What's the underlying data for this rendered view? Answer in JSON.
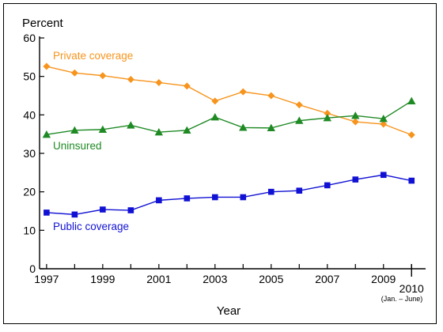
{
  "chart_data": {
    "type": "line",
    "ylabel": "Percent",
    "xlabel": "Year",
    "ylim": [
      0,
      60
    ],
    "yticks": [
      0,
      10,
      20,
      30,
      40,
      50,
      60
    ],
    "x": [
      1997,
      1998,
      1999,
      2000,
      2001,
      2002,
      2003,
      2004,
      2005,
      2006,
      2007,
      2008,
      2009,
      2010
    ],
    "xtick_labels": [
      {
        "x": 1997,
        "label": "1997"
      },
      {
        "x": 1999,
        "label": "1999"
      },
      {
        "x": 2001,
        "label": "2001"
      },
      {
        "x": 2003,
        "label": "2003"
      },
      {
        "x": 2005,
        "label": "2005"
      },
      {
        "x": 2007,
        "label": "2007"
      },
      {
        "x": 2009,
        "label": "2009"
      },
      {
        "x": 2010,
        "label": "2010"
      }
    ],
    "x_note": "(Jan. – June)",
    "grid": false,
    "series": [
      {
        "name": "Private coverage",
        "color": "#F7941D",
        "marker": "diamond",
        "values": [
          52.6,
          50.9,
          50.2,
          49.2,
          48.4,
          47.5,
          43.6,
          46.0,
          45.0,
          42.6,
          40.4,
          38.2,
          37.6,
          34.8
        ]
      },
      {
        "name": "Uninsured",
        "color": "#1F8A24",
        "marker": "triangle",
        "values": [
          34.9,
          36.0,
          36.2,
          37.3,
          35.5,
          36.0,
          39.4,
          36.7,
          36.6,
          38.5,
          39.2,
          39.8,
          39.0,
          43.6
        ]
      },
      {
        "name": "Public coverage",
        "color": "#1111D4",
        "marker": "square",
        "values": [
          14.6,
          14.1,
          15.4,
          15.2,
          17.8,
          18.3,
          18.6,
          18.6,
          20.0,
          20.3,
          21.7,
          23.2,
          24.4,
          22.9
        ]
      }
    ]
  }
}
